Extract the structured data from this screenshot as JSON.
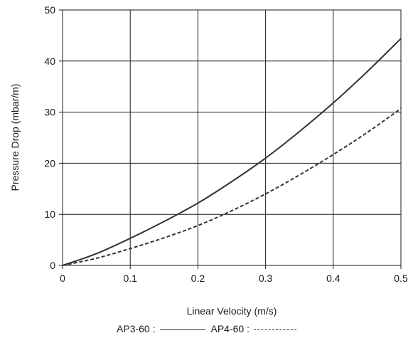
{
  "chart_data": {
    "type": "line",
    "xlabel": "Linear Velocity (m/s)",
    "ylabel": "Pressure Drop (mbar/m)",
    "xlim": [
      0,
      0.5
    ],
    "ylim": [
      0,
      50
    ],
    "x_ticks": [
      "0",
      "0.1",
      "0.2",
      "0.3",
      "0.4",
      "0.5"
    ],
    "y_ticks": [
      "0",
      "10",
      "20",
      "30",
      "40",
      "50"
    ],
    "grid": true,
    "legend_position": "bottom",
    "series": [
      {
        "name": "AP3-60",
        "style": "solid",
        "color": "#333333",
        "x": [
          0,
          0.05,
          0.1,
          0.15,
          0.2,
          0.25,
          0.3,
          0.35,
          0.4,
          0.45,
          0.5
        ],
        "y": [
          0,
          2.3,
          5.3,
          8.6,
          12.2,
          16.4,
          21.0,
          26.2,
          31.8,
          37.9,
          44.4
        ]
      },
      {
        "name": "AP4-60",
        "style": "dashed",
        "color": "#333333",
        "x": [
          0,
          0.05,
          0.1,
          0.15,
          0.2,
          0.25,
          0.3,
          0.35,
          0.4,
          0.45,
          0.5
        ],
        "y": [
          0,
          1.4,
          3.3,
          5.4,
          7.8,
          10.7,
          14.0,
          17.7,
          21.7,
          26.0,
          30.7
        ]
      }
    ]
  },
  "legend": {
    "solid_label": "AP3-60 :",
    "dashed_label": "AP4-60 :"
  }
}
